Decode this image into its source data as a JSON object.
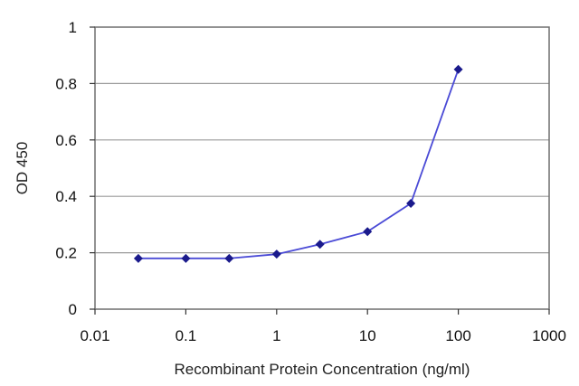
{
  "chart_data": {
    "type": "line",
    "title": "",
    "xlabel": "Recombinant Protein Concentration (ng/ml)",
    "ylabel": "OD 450",
    "x_scale": "log",
    "xlim": [
      0.01,
      1000
    ],
    "ylim": [
      0,
      1
    ],
    "x_ticks": [
      "0.01",
      "0.1",
      "1",
      "10",
      "100",
      "1000"
    ],
    "y_ticks": [
      "0",
      "0.2",
      "0.4",
      "0.6",
      "0.8",
      "1"
    ],
    "grid": "horizontal",
    "legend": "none",
    "series": [
      {
        "x": [
          0.03,
          0.1,
          0.3,
          1,
          3,
          10,
          30,
          100
        ],
        "y": [
          0.18,
          0.18,
          0.18,
          0.195,
          0.23,
          0.275,
          0.375,
          0.85
        ]
      }
    ],
    "colors": {
      "line": "#4a4ad6",
      "marker": "#1a1a8c",
      "grid": "#9a9a9a",
      "frame": "#6e6e6e"
    }
  }
}
